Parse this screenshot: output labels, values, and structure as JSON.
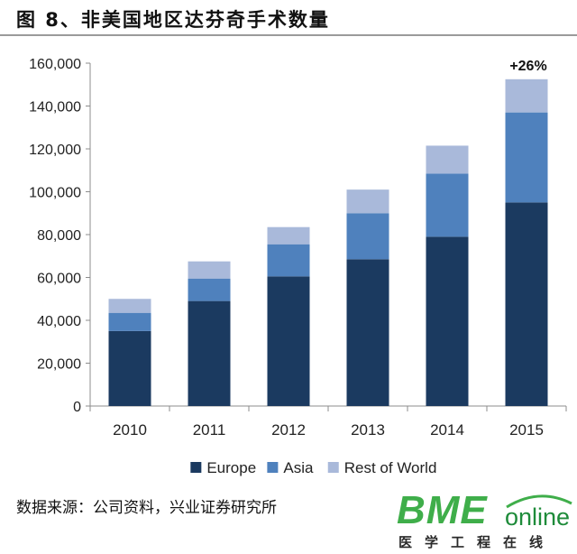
{
  "figure": {
    "title": "图 8、非美国地区达芬奇手术数量",
    "source": "数据来源：公司资料，兴业证券研究所"
  },
  "logo": {
    "brand": "BME",
    "suffix": "online",
    "tagline": "医学工程在线"
  },
  "colors": {
    "Europe": "#1b3a60",
    "Asia": "#4f81bd",
    "Rest of World": "#a9b9da"
  },
  "chart_data": {
    "type": "bar",
    "stacked": true,
    "categories": [
      "2010",
      "2011",
      "2012",
      "2013",
      "2014",
      "2015"
    ],
    "series": [
      {
        "name": "Europe",
        "values": [
          35000,
          49000,
          60500,
          68500,
          79000,
          95000
        ]
      },
      {
        "name": "Asia",
        "values": [
          8500,
          10500,
          15000,
          21500,
          29500,
          42000
        ]
      },
      {
        "name": "Rest of World",
        "values": [
          6500,
          8000,
          8000,
          11000,
          13000,
          15500
        ]
      }
    ],
    "ylim": [
      0,
      160000
    ],
    "yticks": [
      0,
      20000,
      40000,
      60000,
      80000,
      100000,
      120000,
      140000,
      160000
    ],
    "ytick_labels": [
      "0",
      "20,000",
      "40,000",
      "60,000",
      "80,000",
      "100,000",
      "120,000",
      "140,000",
      "160,000"
    ],
    "annotation": {
      "category": "2015",
      "text": "+26%"
    },
    "legend_position": "bottom",
    "grid": false
  }
}
